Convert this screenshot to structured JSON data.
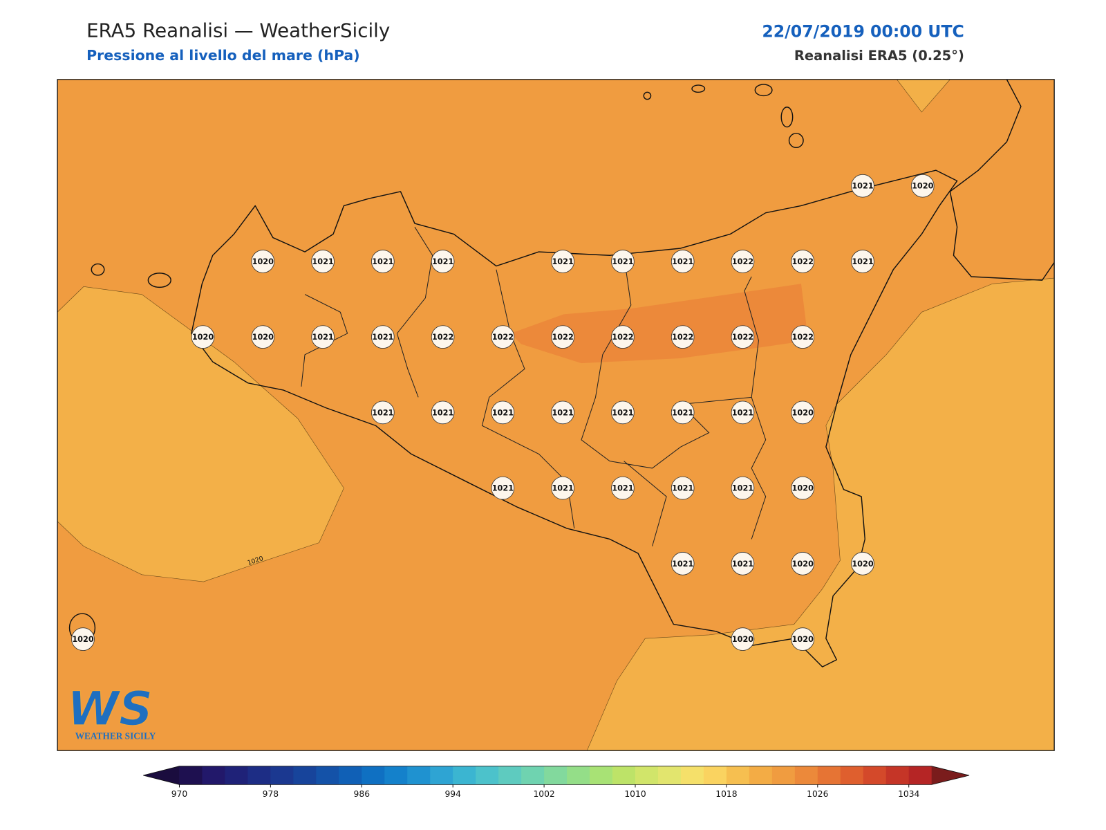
{
  "header": {
    "title": "ERA5 Reanalisi — WeatherSicily",
    "subtitle": "Pressione al livello del mare (hPa)",
    "datetime": "22/07/2019 00:00 UTC",
    "source": "Reanalisi ERA5 (0.25°)"
  },
  "map": {
    "contour_label": "1020",
    "station_grid": [
      [
        null,
        null,
        null,
        null,
        null,
        null,
        null,
        null,
        null,
        null,
        null,
        null,
        null,
        1021,
        1020
      ],
      [
        null,
        null,
        null,
        1020,
        1021,
        1021,
        1021,
        null,
        1021,
        1021,
        1021,
        1022,
        1022,
        1021,
        null
      ],
      [
        null,
        null,
        1020,
        1020,
        1021,
        1021,
        1022,
        1022,
        1022,
        1022,
        1022,
        1022,
        1022,
        null,
        null
      ],
      [
        null,
        null,
        null,
        null,
        null,
        1021,
        1021,
        1021,
        1021,
        1021,
        1021,
        1021,
        1020,
        null,
        null
      ],
      [
        null,
        null,
        null,
        null,
        null,
        null,
        null,
        1021,
        1021,
        1021,
        1021,
        1021,
        1020,
        null,
        null
      ],
      [
        null,
        null,
        null,
        null,
        null,
        null,
        null,
        null,
        null,
        null,
        1021,
        1021,
        1020,
        1020,
        null
      ],
      [
        1020,
        null,
        null,
        null,
        null,
        null,
        null,
        null,
        null,
        null,
        null,
        1020,
        1020,
        null,
        null
      ]
    ]
  },
  "colorbar": {
    "lim": [
      970,
      1036
    ],
    "ticks": [
      970,
      978,
      986,
      994,
      1002,
      1010,
      1018,
      1026,
      1034
    ],
    "colors": [
      "#1e1050",
      "#22186a",
      "#1f2278",
      "#1d2d85",
      "#1b3890",
      "#17449b",
      "#1452a8",
      "#1060b6",
      "#0f70c2",
      "#1481cb",
      "#1f92d0",
      "#2ea4d3",
      "#3bb5d1",
      "#4cc2cb",
      "#5ecbbf",
      "#6fd3b0",
      "#82d99d",
      "#94de88",
      "#a8e275",
      "#bde368",
      "#d1e56a",
      "#e2e56e",
      "#f5e06a",
      "#fad360",
      "#f6bf50",
      "#f3ac45",
      "#f09c40",
      "#ec893a",
      "#e67434",
      "#df5f2e",
      "#d4492a",
      "#c53527",
      "#b52525"
    ],
    "under_color": "#1a0c3e",
    "over_color": "#7a1c1c"
  },
  "logo": {
    "letters": "WS",
    "name": "WEATHER SICILY"
  }
}
